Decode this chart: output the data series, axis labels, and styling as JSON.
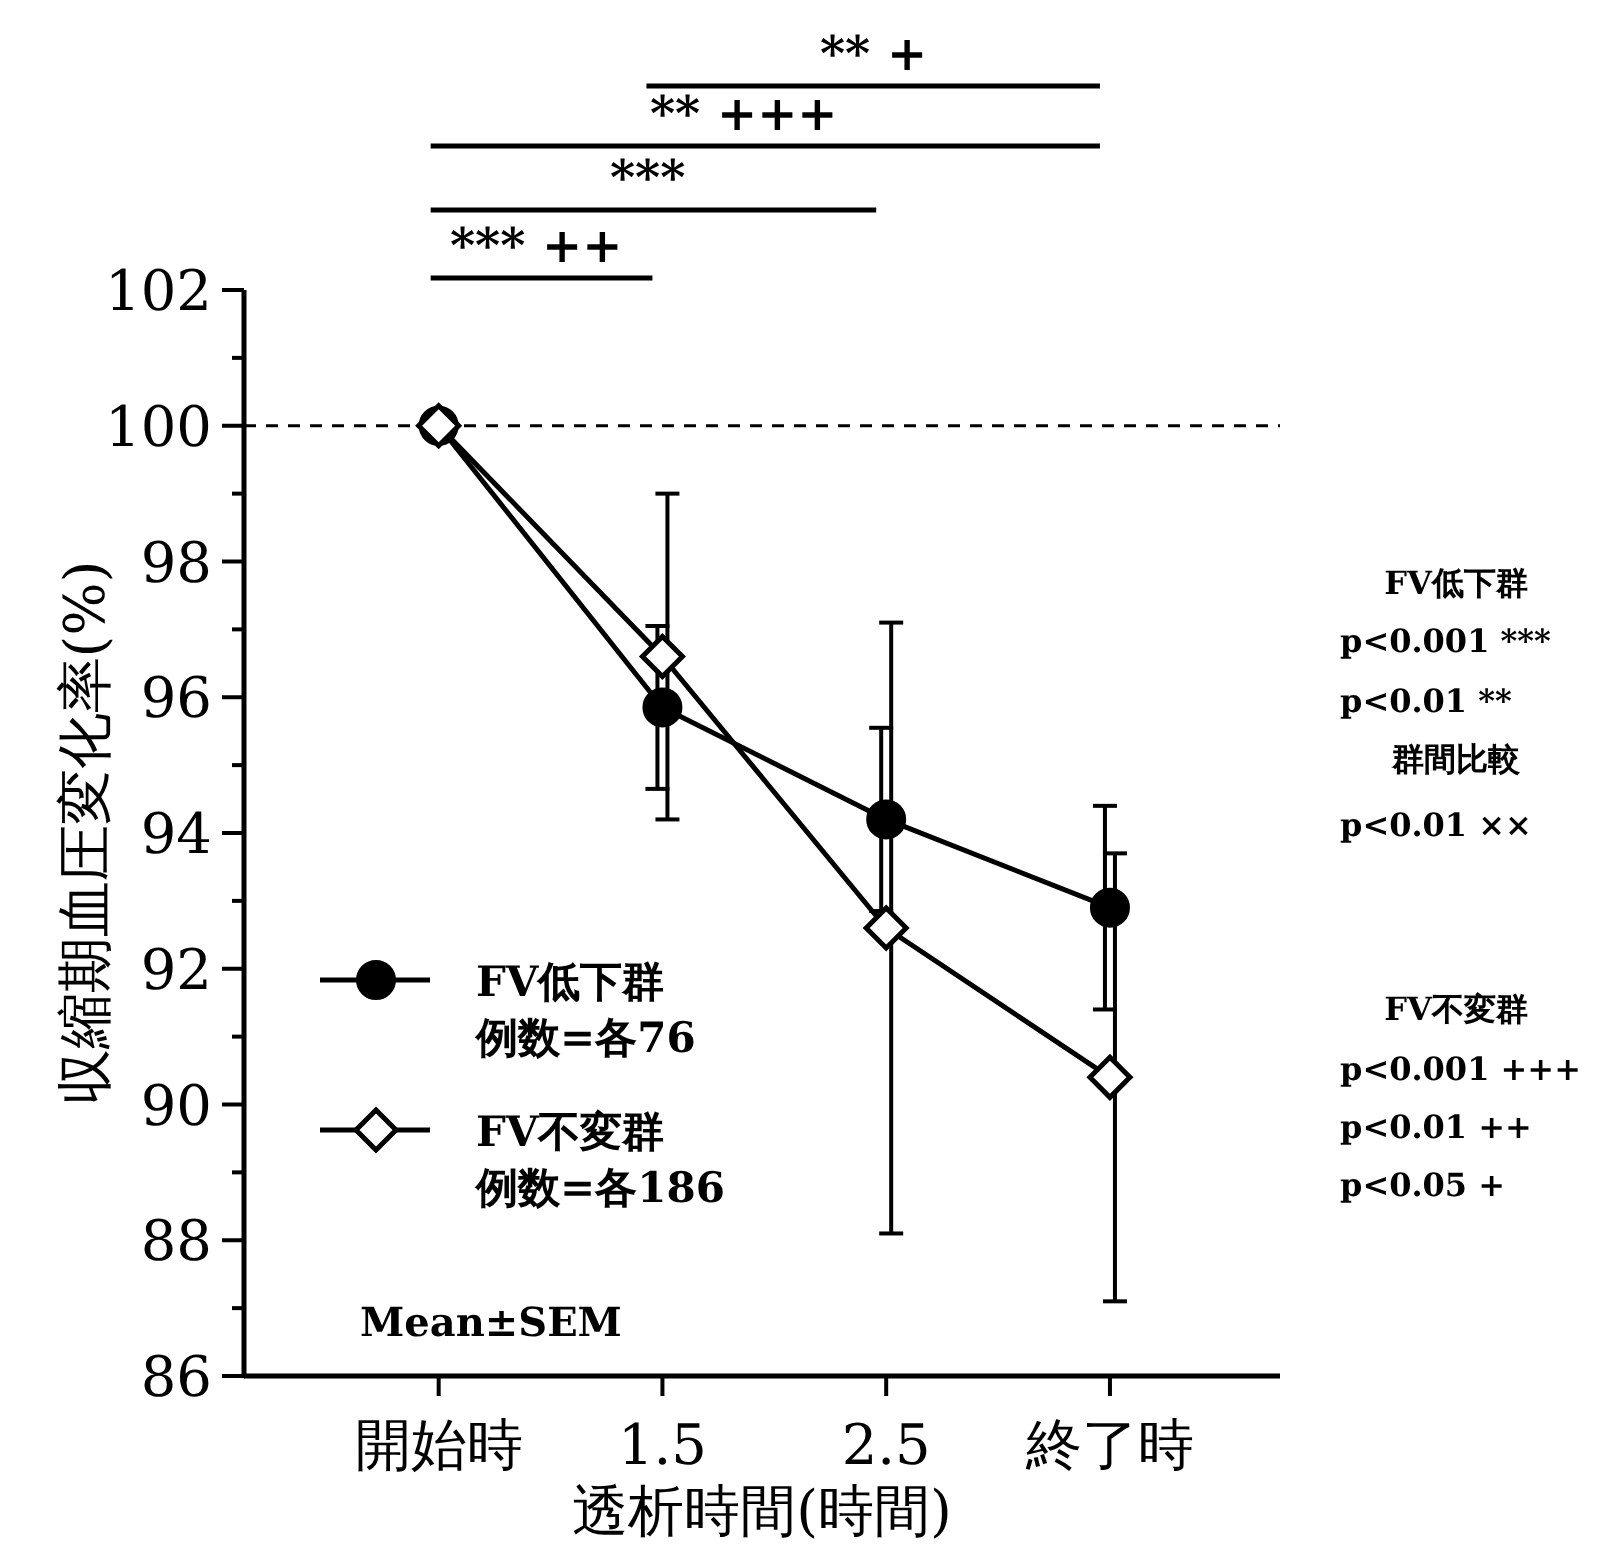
{
  "chart_data": {
    "type": "line",
    "xlabel": "透析時間(時間)",
    "ylabel": "収縮期血圧変化率(%)",
    "categories": [
      "開始時",
      "1.5",
      "2.5",
      "終了時"
    ],
    "series": [
      {
        "name": "FV低下群",
        "color": "#000000",
        "marker": "circle",
        "values": [
          100,
          95.85,
          94.2,
          92.9
        ],
        "errors": [
          null,
          1.2,
          1.35,
          1.5
        ]
      },
      {
        "name": "FV不変群",
        "color": "#000000",
        "marker": "diamond",
        "values": [
          100,
          96.6,
          92.6,
          90.4
        ],
        "errors": [
          null,
          2.4,
          4.5,
          3.3
        ]
      }
    ],
    "ylim": [
      86,
      102
    ],
    "yticks": [
      86,
      {
        "value": 87,
        "label": null
      },
      88,
      {
        "value": 89,
        "label": null
      },
      90,
      {
        "value": 91,
        "label": null
      },
      92,
      {
        "value": 93,
        "label": null
      },
      94,
      {
        "value": 95,
        "label": null
      },
      96,
      {
        "value": 97,
        "label": null
      },
      98,
      {
        "value": 99,
        "label": null
      },
      100,
      {
        "value": 101,
        "label": null
      },
      102
    ],
    "ref_lines": [
      {
        "axis": "y",
        "value": 100,
        "line_style": "dashed"
      }
    ],
    "legend": "bottom left",
    "grid": false,
    "line_style": "solid",
    "annotations": [
      "*** ++",
      "***",
      "** +++",
      "** +",
      "Mean±SEM",
      "FV低下群",
      "p<0.001   ***",
      "p<0.01   **",
      "群間比較",
      "p<0.01  ××",
      "FV不変群",
      "p<0.001  +++",
      "p<0.01   ++",
      "p<0.05   +",
      "例数=各76",
      "例数=各186"
    ]
  }
}
